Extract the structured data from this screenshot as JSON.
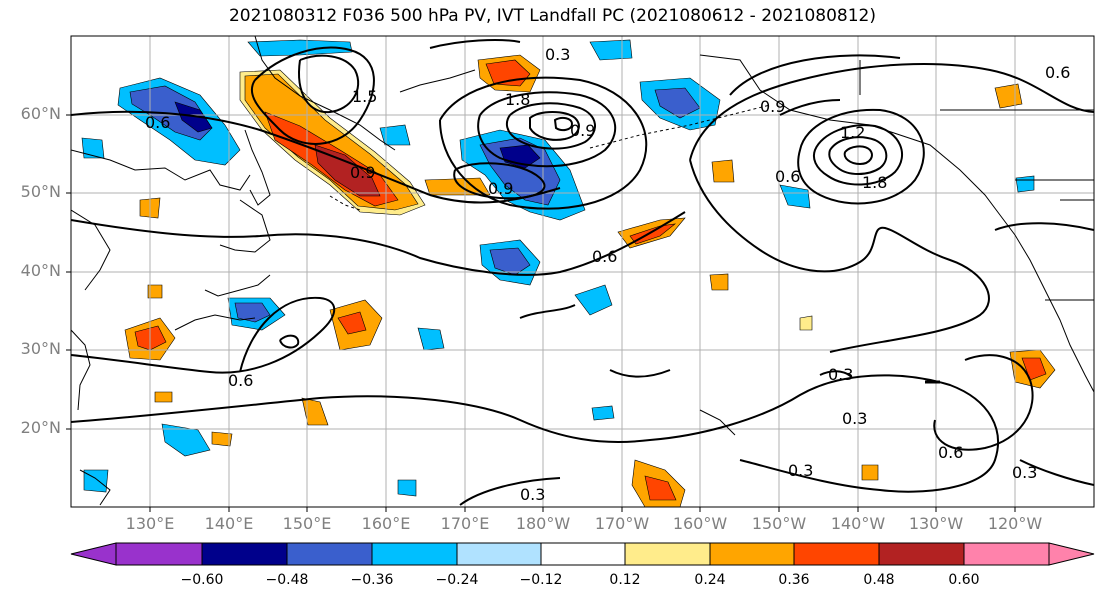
{
  "title": "2021080312 F036 500 hPa PV, IVT Landfall PC (2021080612 - 2021080812)",
  "lat_labels": [
    "60°N",
    "50°N",
    "40°N",
    "30°N",
    "20°N"
  ],
  "lon_labels": [
    "130°E",
    "140°E",
    "150°E",
    "160°E",
    "170°E",
    "180°W",
    "170°W",
    "160°W",
    "150°W",
    "140°W",
    "130°W",
    "120°W"
  ],
  "contour_labels": [
    "0.3",
    "1.5",
    "0.6",
    "0.9",
    "0.9",
    "1.8",
    "0.9",
    "0.6",
    "0.9",
    "1.2",
    "1.8",
    "0.6",
    "0.6",
    "0.6",
    "0.3",
    "0.3",
    "0.6",
    "0.3",
    "0.3",
    "0.3"
  ],
  "colorbar": {
    "ticks": [
      "−0.60",
      "−0.48",
      "−0.36",
      "−0.24",
      "−0.12",
      "0.12",
      "0.24",
      "0.36",
      "0.48",
      "0.60"
    ],
    "colors": [
      "#9932cc",
      "#00008b",
      "#3a5fcd",
      "#00bfff",
      "#b0e2ff",
      "#ffffff",
      "#ffec8b",
      "#ffa500",
      "#ff4500",
      "#b22222",
      "#ff82ab"
    ]
  }
}
